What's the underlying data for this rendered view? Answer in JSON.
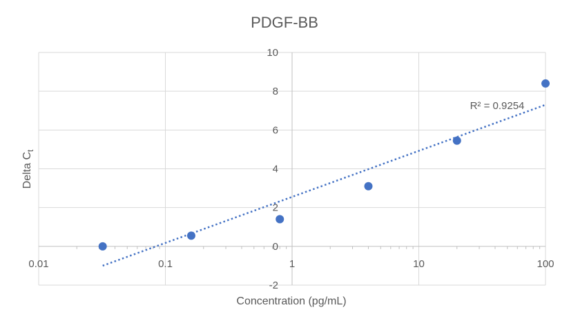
{
  "chart_data": {
    "type": "scatter",
    "title": "PDGF-BB",
    "xlabel": "Concentration (pg/mL)",
    "ylabel_main": "Delta C",
    "ylabel_sub": "t",
    "x_scale": "log",
    "xlim": [
      0.01,
      100
    ],
    "ylim": [
      -2,
      10
    ],
    "x_ticks": [
      0.01,
      0.1,
      1,
      10,
      100
    ],
    "x_tick_labels": [
      "0.01",
      "0.1",
      "1",
      "10",
      "100"
    ],
    "y_ticks": [
      -2,
      0,
      2,
      4,
      6,
      8,
      10
    ],
    "y_tick_labels": [
      "-2",
      "0",
      "2",
      "4",
      "6",
      "8",
      "10"
    ],
    "grid": true,
    "points": [
      {
        "x": 0.032,
        "y": 0.0
      },
      {
        "x": 0.16,
        "y": 0.55
      },
      {
        "x": 0.8,
        "y": 1.4
      },
      {
        "x": 4.0,
        "y": 3.1
      },
      {
        "x": 20,
        "y": 5.45
      },
      {
        "x": 100,
        "y": 8.4
      }
    ],
    "trendline": {
      "type": "logarithmic",
      "from": {
        "x": 0.032,
        "y": -1.0
      },
      "to": {
        "x": 100,
        "y": 7.3
      },
      "annotation": "R² = 0.9254"
    },
    "colors": {
      "points": "#4472c4",
      "trendline": "#4472c4",
      "grid": "#d9d9d9",
      "text": "#595959"
    }
  }
}
